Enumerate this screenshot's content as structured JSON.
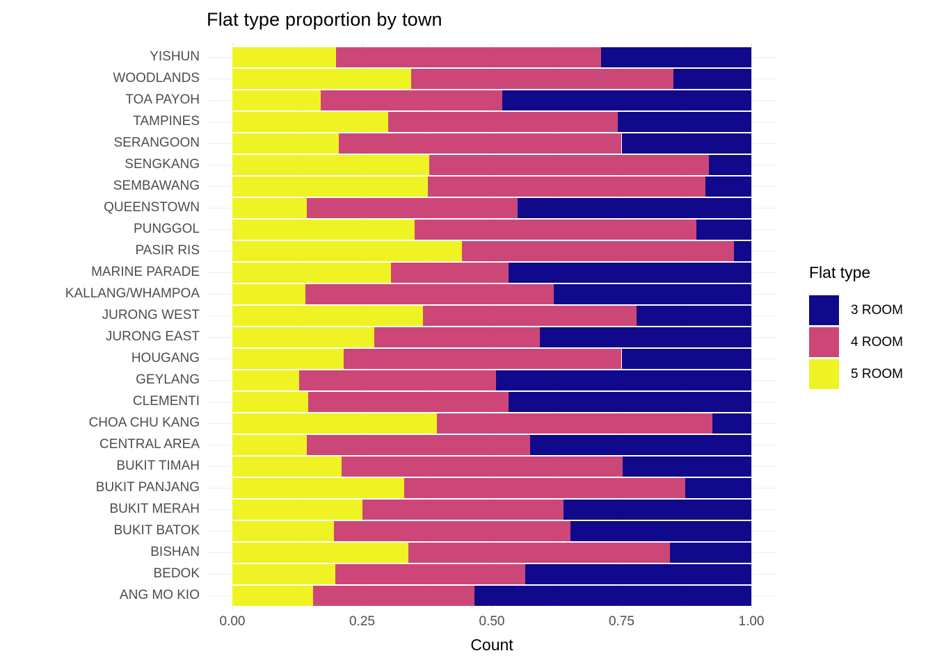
{
  "title": "Flat type proportion by town",
  "axes": {
    "x_title": "Count",
    "x_ticks": [
      {
        "label": "0.00",
        "value": 0
      },
      {
        "label": "0.25",
        "value": 0.25
      },
      {
        "label": "0.50",
        "value": 0.5
      },
      {
        "label": "0.75",
        "value": 0.75
      },
      {
        "label": "1.00",
        "value": 1
      }
    ]
  },
  "legend": {
    "title": "Flat type",
    "items": [
      {
        "label": "3 ROOM",
        "color": "#10098C"
      },
      {
        "label": "4 ROOM",
        "color": "#CC4778"
      },
      {
        "label": "5 ROOM",
        "color": "#F0F323"
      }
    ]
  },
  "colors": {
    "room3": "#10098C",
    "room4": "#CC4778",
    "room5": "#F0F323",
    "axis_text": "#4d4d4d",
    "grid_major": "#e8e8e8",
    "grid_minor": "#f3f3f3",
    "background": "#ffffff"
  },
  "chart_data": {
    "type": "bar",
    "orientation": "horizontal",
    "stacked": true,
    "normalized": true,
    "title": "Flat type proportion by town",
    "xlabel": "Count",
    "ylabel": "",
    "xlim": [
      0,
      1
    ],
    "grid": true,
    "legend_position": "right",
    "stack_order": [
      "5 ROOM",
      "4 ROOM",
      "3 ROOM"
    ],
    "categories": [
      "YISHUN",
      "WOODLANDS",
      "TOA PAYOH",
      "TAMPINES",
      "SERANGOON",
      "SENGKANG",
      "SEMBAWANG",
      "QUEENSTOWN",
      "PUNGGOL",
      "PASIR RIS",
      "MARINE PARADE",
      "KALLANG/WHAMPOA",
      "JURONG WEST",
      "JURONG EAST",
      "HOUGANG",
      "GEYLANG",
      "CLEMENTI",
      "CHOA CHU KANG",
      "CENTRAL AREA",
      "BUKIT TIMAH",
      "BUKIT PANJANG",
      "BUKIT MERAH",
      "BUKIT BATOK",
      "BISHAN",
      "BEDOK",
      "ANG MO KIO"
    ],
    "series": [
      {
        "name": "5 ROOM",
        "color": "#F0F323",
        "values": [
          0.2,
          0.345,
          0.17,
          0.3,
          0.205,
          0.38,
          0.377,
          0.144,
          0.351,
          0.443,
          0.305,
          0.141,
          0.367,
          0.273,
          0.214,
          0.129,
          0.146,
          0.394,
          0.144,
          0.211,
          0.331,
          0.251,
          0.196,
          0.339,
          0.199,
          0.156
        ]
      },
      {
        "name": "4 ROOM",
        "color": "#CC4778",
        "values": [
          0.51,
          0.505,
          0.35,
          0.443,
          0.545,
          0.538,
          0.534,
          0.406,
          0.543,
          0.523,
          0.227,
          0.478,
          0.412,
          0.32,
          0.536,
          0.379,
          0.386,
          0.531,
          0.43,
          0.541,
          0.542,
          0.387,
          0.455,
          0.504,
          0.365,
          0.311
        ]
      },
      {
        "name": "3 ROOM",
        "color": "#10098C",
        "values": [
          0.29,
          0.15,
          0.48,
          0.257,
          0.25,
          0.082,
          0.089,
          0.45,
          0.106,
          0.034,
          0.468,
          0.381,
          0.221,
          0.407,
          0.25,
          0.492,
          0.468,
          0.075,
          0.426,
          0.248,
          0.127,
          0.362,
          0.349,
          0.157,
          0.436,
          0.533
        ]
      }
    ]
  }
}
